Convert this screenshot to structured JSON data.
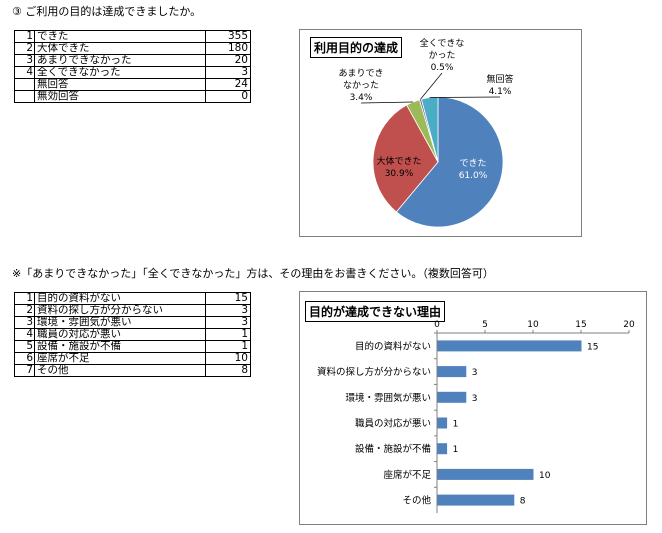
{
  "q3": {
    "heading": "③ ご利用の目的は達成できましたか。",
    "rows": [
      {
        "num": "1",
        "label": "できた",
        "value": "355"
      },
      {
        "num": "2",
        "label": "大体できた",
        "value": "180"
      },
      {
        "num": "3",
        "label": "あまりできなかった",
        "value": "20"
      },
      {
        "num": "4",
        "label": "全くできなかった",
        "value": "3"
      },
      {
        "num": "",
        "label": "無回答",
        "value": "24"
      },
      {
        "num": "",
        "label": "無効回答",
        "value": "0"
      }
    ]
  },
  "reasons": {
    "note": "※「あまりできなかった」「全くできなかった」方は、その理由をお書きください。（複数回答可）",
    "rows": [
      {
        "num": "1",
        "label": "目的の資料がない",
        "value": "15"
      },
      {
        "num": "2",
        "label": "資料の探し方が分からない",
        "value": "3"
      },
      {
        "num": "3",
        "label": "環境・雰囲気が悪い",
        "value": "3"
      },
      {
        "num": "4",
        "label": "職員の対応が悪い",
        "value": "1"
      },
      {
        "num": "5",
        "label": "設備・施設が不備",
        "value": "1"
      },
      {
        "num": "6",
        "label": "座席が不足",
        "value": "10"
      },
      {
        "num": "7",
        "label": "その他",
        "value": "8"
      }
    ]
  },
  "chart_data": [
    {
      "type": "pie",
      "title": "利用目的の達成",
      "slices": [
        {
          "label": "できた",
          "percent": "61.0%",
          "value": 61.0,
          "color": "#4f81bd"
        },
        {
          "label": "大体できた",
          "percent": "30.9%",
          "value": 30.9,
          "color": "#c0504d"
        },
        {
          "label": "あまりできなかった",
          "label_lines": [
            "あまりでき",
            "なかった"
          ],
          "percent": "3.4%",
          "value": 3.4,
          "color": "#9bbb59"
        },
        {
          "label": "全くできなかった",
          "label_lines": [
            "全くできな",
            "かった"
          ],
          "percent": "0.5%",
          "value": 0.5,
          "color": "#8064a2"
        },
        {
          "label": "無回答",
          "percent": "4.1%",
          "value": 4.1,
          "color": "#4bacc6"
        }
      ]
    },
    {
      "type": "bar",
      "orientation": "horizontal",
      "title": "目的が達成できない理由",
      "categories": [
        "目的の資料がない",
        "資料の探し方が分からない",
        "環境・雰囲気が悪い",
        "職員の対応が悪い",
        "設備・施設が不備",
        "座席が不足",
        "その他"
      ],
      "values": [
        15,
        3,
        3,
        1,
        1,
        10,
        8
      ],
      "xlim": [
        0,
        20
      ],
      "ticks": [
        0,
        5,
        10,
        15,
        20
      ],
      "color": "#4f81bd",
      "grid": false
    }
  ]
}
